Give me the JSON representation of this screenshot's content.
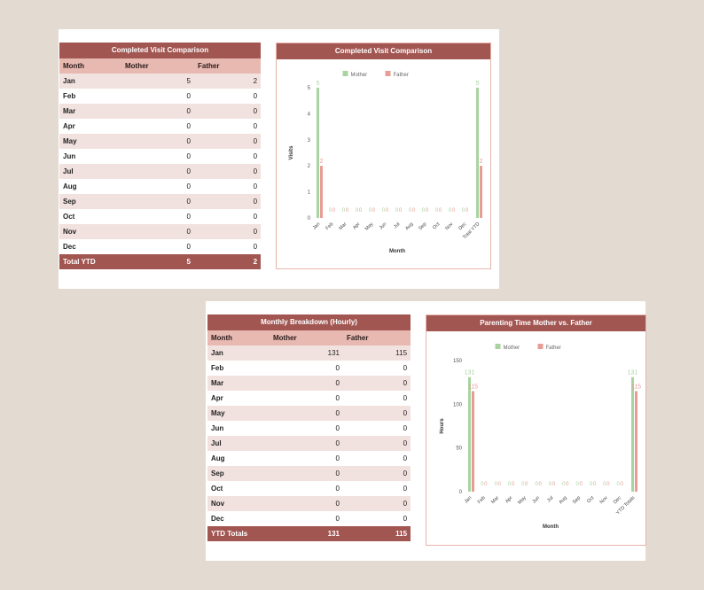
{
  "visits_table": {
    "title": "Completed Visit Comparison",
    "headers": [
      "Month",
      "Mother",
      "Father"
    ],
    "rows": [
      [
        "Jan",
        "5",
        "2"
      ],
      [
        "Feb",
        "0",
        "0"
      ],
      [
        "Mar",
        "0",
        "0"
      ],
      [
        "Apr",
        "0",
        "0"
      ],
      [
        "May",
        "0",
        "0"
      ],
      [
        "Jun",
        "0",
        "0"
      ],
      [
        "Jul",
        "0",
        "0"
      ],
      [
        "Aug",
        "0",
        "0"
      ],
      [
        "Sep",
        "0",
        "0"
      ],
      [
        "Oct",
        "0",
        "0"
      ],
      [
        "Nov",
        "0",
        "0"
      ],
      [
        "Dec",
        "0",
        "0"
      ]
    ],
    "total": [
      "Total YTD",
      "5",
      "2"
    ]
  },
  "hours_table": {
    "title": "Monthly Breakdown (Hourly)",
    "headers": [
      "Month",
      "Mother",
      "Father"
    ],
    "rows": [
      [
        "Jan",
        "131",
        "115"
      ],
      [
        "Feb",
        "0",
        "0"
      ],
      [
        "Mar",
        "0",
        "0"
      ],
      [
        "Apr",
        "0",
        "0"
      ],
      [
        "May",
        "0",
        "0"
      ],
      [
        "Jun",
        "0",
        "0"
      ],
      [
        "Jul",
        "0",
        "0"
      ],
      [
        "Aug",
        "0",
        "0"
      ],
      [
        "Sep",
        "0",
        "0"
      ],
      [
        "Oct",
        "0",
        "0"
      ],
      [
        "Nov",
        "0",
        "0"
      ],
      [
        "Dec",
        "0",
        "0"
      ]
    ],
    "total": [
      "YTD Totals",
      "131",
      "115"
    ]
  },
  "colors": {
    "mother": "#a9d4a1",
    "father": "#e89c96",
    "header": "#a25652",
    "subheader": "#e7b9b1",
    "band": "#f2e2df"
  },
  "chart_data": [
    {
      "type": "bar",
      "title": "Completed Visit Comparison",
      "xlabel": "Month",
      "ylabel": "Visits",
      "categories": [
        "Jan",
        "Feb",
        "Mar",
        "Apr",
        "May",
        "Jun",
        "Jul",
        "Aug",
        "Sep",
        "Oct",
        "Nov",
        "Dec",
        "Total YTD"
      ],
      "series": [
        {
          "name": "Mother",
          "values": [
            5,
            0,
            0,
            0,
            0,
            0,
            0,
            0,
            0,
            0,
            0,
            0,
            5
          ]
        },
        {
          "name": "Father",
          "values": [
            2,
            0,
            0,
            0,
            0,
            0,
            0,
            0,
            0,
            0,
            0,
            0,
            2
          ]
        }
      ],
      "ylim": [
        0,
        5
      ],
      "yticks": [
        0,
        1,
        2,
        3,
        4,
        5
      ],
      "legend": "top-center",
      "grid": false
    },
    {
      "type": "bar",
      "title": "Parenting Time Mother vs. Father",
      "xlabel": "Month",
      "ylabel": "Hours",
      "categories": [
        "Jan",
        "Feb",
        "Mar",
        "Apr",
        "May",
        "Jun",
        "Jul",
        "Aug",
        "Sep",
        "Oct",
        "Nov",
        "Dec",
        "YTD Totals"
      ],
      "series": [
        {
          "name": "Mother",
          "values": [
            131,
            0,
            0,
            0,
            0,
            0,
            0,
            0,
            0,
            0,
            0,
            0,
            131
          ]
        },
        {
          "name": "Father",
          "values": [
            115,
            0,
            0,
            0,
            0,
            0,
            0,
            0,
            0,
            0,
            0,
            0,
            115
          ]
        }
      ],
      "ylim": [
        0,
        150
      ],
      "yticks": [
        0,
        50,
        100,
        150
      ],
      "legend": "top-center",
      "grid": false
    }
  ]
}
